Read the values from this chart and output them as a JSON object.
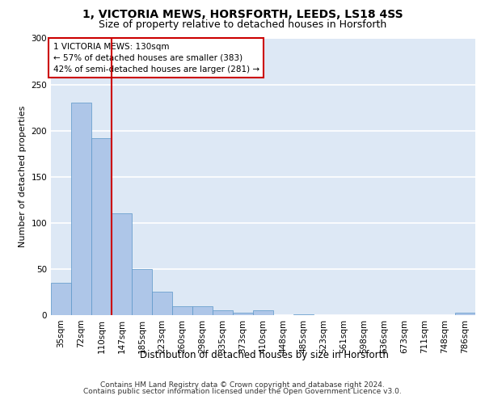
{
  "title1": "1, VICTORIA MEWS, HORSFORTH, LEEDS, LS18 4SS",
  "title2": "Size of property relative to detached houses in Horsforth",
  "xlabel": "Distribution of detached houses by size in Horsforth",
  "ylabel": "Number of detached properties",
  "footer1": "Contains HM Land Registry data © Crown copyright and database right 2024.",
  "footer2": "Contains public sector information licensed under the Open Government Licence v3.0.",
  "annotation_line1": "1 VICTORIA MEWS: 130sqm",
  "annotation_line2": "← 57% of detached houses are smaller (383)",
  "annotation_line3": "42% of semi-detached houses are larger (281) →",
  "bar_categories": [
    "35sqm",
    "72sqm",
    "110sqm",
    "147sqm",
    "185sqm",
    "223sqm",
    "260sqm",
    "298sqm",
    "335sqm",
    "373sqm",
    "410sqm",
    "448sqm",
    "485sqm",
    "523sqm",
    "561sqm",
    "598sqm",
    "636sqm",
    "673sqm",
    "711sqm",
    "748sqm",
    "786sqm"
  ],
  "bar_values": [
    35,
    230,
    192,
    110,
    50,
    25,
    10,
    10,
    5,
    3,
    5,
    0,
    1,
    0,
    0,
    0,
    0,
    0,
    0,
    0,
    3
  ],
  "bar_color": "#aec6e8",
  "bar_edge_color": "#5a96c8",
  "vline_color": "#cc0000",
  "vline_x": 2.5,
  "ylim": [
    0,
    300
  ],
  "yticks": [
    0,
    50,
    100,
    150,
    200,
    250,
    300
  ],
  "bg_color": "#dde8f5",
  "grid_color": "#ffffff",
  "annotation_box_color": "#ffffff",
  "annotation_box_edge": "#cc0000",
  "title1_fontsize": 10,
  "title2_fontsize": 9,
  "xlabel_fontsize": 8.5,
  "ylabel_fontsize": 8,
  "tick_fontsize": 7.5,
  "footer_fontsize": 6.5,
  "annotation_fontsize": 7.5
}
